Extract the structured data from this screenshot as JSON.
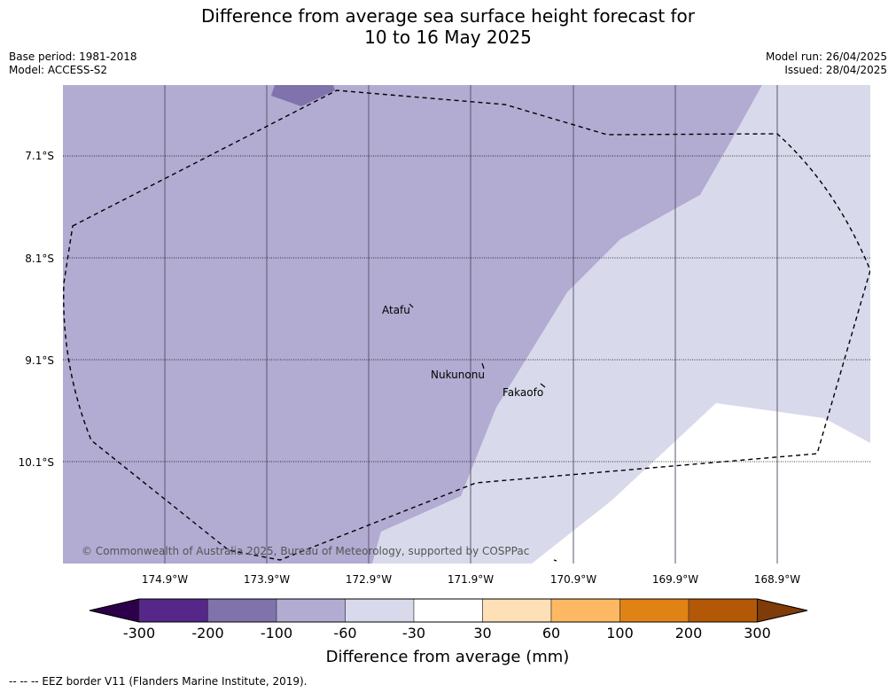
{
  "title": {
    "line1": "Difference from average sea surface height forecast for",
    "line2": "10 to 16 May 2025"
  },
  "meta": {
    "base_period": "Base period: 1981-2018",
    "model": "Model: ACCESS-S2",
    "model_run": "Model run: 26/04/2025",
    "issued": "Issued: 28/04/2025"
  },
  "map": {
    "lat_labels": [
      "7.1°S",
      "8.1°S",
      "9.1°S",
      "10.1°S"
    ],
    "lon_labels": [
      "174.9°W",
      "173.9°W",
      "172.9°W",
      "171.9°W",
      "170.9°W",
      "169.9°W",
      "168.9°W"
    ],
    "places": [
      "Atafu",
      "Nukunonu",
      "Fakaofo"
    ],
    "copyright": "© Commonwealth of Australia 2025, Bureau of Meteorology, supported by COSPPac"
  },
  "colorbar": {
    "ticks": [
      "-300",
      "-200",
      "-100",
      "-60",
      "-30",
      "30",
      "60",
      "100",
      "200",
      "300"
    ],
    "colors": [
      "#2d004b",
      "#542788",
      "#8073ac",
      "#b2abd2",
      "#d8daeb",
      "#ffffff",
      "#fee0b6",
      "#fdb863",
      "#e08214",
      "#b35806",
      "#7f3b08"
    ],
    "label": "Difference from average (mm)"
  },
  "footer": "--  --  -- EEZ border V11 (Flanders Marine Institute, 2019)."
}
